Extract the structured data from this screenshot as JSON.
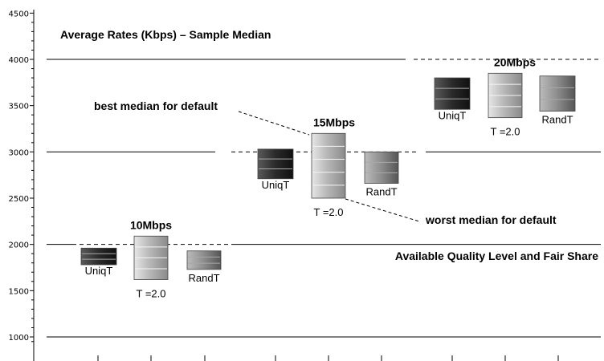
{
  "chart_data": {
    "type": "boxplot",
    "title": "Average Rates (Kbps) – Sample Median",
    "xlabel": "",
    "ylabel": "",
    "ylim": [
      900,
      4520
    ],
    "yticks": [
      1000,
      1500,
      2000,
      2500,
      3000,
      3500,
      4000,
      4500
    ],
    "groups": [
      {
        "name": "10Mbps",
        "reference": 2000,
        "boxes": [
          {
            "name": "UniqT",
            "low": 1780,
            "high": 1960,
            "shade": "dark"
          },
          {
            "name": "T =2.0",
            "low": 1620,
            "high": 2090,
            "shade": "light"
          },
          {
            "name": "RandT",
            "low": 1730,
            "high": 1930,
            "shade": "mid"
          }
        ]
      },
      {
        "name": "15Mbps",
        "reference": 3000,
        "boxes": [
          {
            "name": "UniqT",
            "low": 2710,
            "high": 3030,
            "shade": "dark"
          },
          {
            "name": "T =2.0",
            "low": 2500,
            "high": 3200,
            "shade": "light"
          },
          {
            "name": "RandT",
            "low": 2660,
            "high": 3000,
            "shade": "mid"
          }
        ]
      },
      {
        "name": "20Mbps",
        "reference": 4000,
        "boxes": [
          {
            "name": "UniqT",
            "low": 3460,
            "high": 3800,
            "shade": "dark"
          },
          {
            "name": "T =2.0",
            "low": 3370,
            "high": 3850,
            "shade": "light"
          },
          {
            "name": "RandT",
            "low": 3440,
            "high": 3820,
            "shade": "mid"
          }
        ]
      }
    ],
    "hlines_solid": [
      1000,
      2000,
      3000,
      4000
    ],
    "annotations": [
      {
        "text": "best median for default"
      },
      {
        "text": "worst median for default"
      },
      {
        "text": "Available Quality Level and Fair Share"
      }
    ]
  }
}
